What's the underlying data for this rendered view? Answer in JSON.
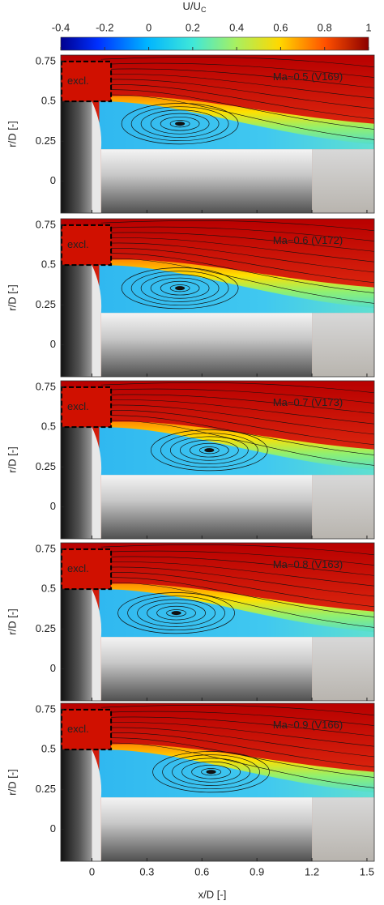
{
  "chart_data": {
    "type": "heatmap",
    "colorbar": {
      "label": "U/U",
      "label_sub": "C",
      "lim": [
        -0.4,
        1
      ],
      "ticks": [
        -0.4,
        -0.2,
        0,
        0.2,
        0.4,
        0.6,
        0.8,
        1
      ]
    },
    "xlabel": "x/D [-]",
    "ylabel": "r/D [-]",
    "xlim": [
      -0.17,
      1.54
    ],
    "xticks": [
      0,
      0.3,
      0.6,
      0.9,
      1.2,
      1.5
    ],
    "ylim": [
      -0.2,
      0.79
    ],
    "yticks": [
      0.75,
      0.5,
      0.25,
      0
    ],
    "panels": [
      {
        "annotation": "Ma~0.5 (V169)",
        "excluded": "excl."
      },
      {
        "annotation": "Ma~0.6 (V172)",
        "excluded": "excl."
      },
      {
        "annotation": "Ma~0.7 (V173)",
        "excluded": "excl."
      },
      {
        "annotation": "Ma~0.8 (V163)",
        "excluded": "excl."
      },
      {
        "annotation": "Ma~0.9 (V166)",
        "excluded": "excl."
      }
    ]
  }
}
